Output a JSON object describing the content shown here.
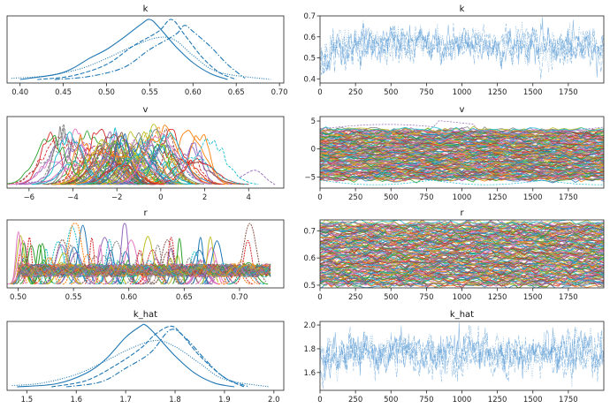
{
  "chart_data": [
    {
      "type": "line",
      "title": "k",
      "xlim": [
        0.385,
        0.705
      ],
      "x_ticks": [
        "0.40",
        "0.45",
        "0.50",
        "0.55",
        "0.60",
        "0.65",
        "0.70"
      ],
      "x_tick_values": [
        0.4,
        0.45,
        0.5,
        0.55,
        0.6,
        0.65,
        0.7
      ],
      "series": [
        {
          "style": "solid",
          "x": [
            0.4,
            0.44,
            0.46,
            0.48,
            0.5,
            0.52,
            0.54,
            0.55,
            0.56,
            0.58,
            0.6,
            0.62,
            0.64
          ],
          "y": [
            0.0,
            0.08,
            0.18,
            0.35,
            0.5,
            0.7,
            0.92,
            1.0,
            0.88,
            0.55,
            0.28,
            0.1,
            0.0
          ]
        },
        {
          "style": "dashed",
          "x": [
            0.42,
            0.46,
            0.5,
            0.53,
            0.56,
            0.575,
            0.59,
            0.61,
            0.63,
            0.65
          ],
          "y": [
            0.0,
            0.06,
            0.25,
            0.55,
            0.8,
            1.0,
            0.75,
            0.38,
            0.12,
            0.0
          ]
        },
        {
          "style": "dashdot",
          "x": [
            0.44,
            0.48,
            0.52,
            0.55,
            0.58,
            0.59,
            0.6,
            0.62,
            0.64,
            0.66
          ],
          "y": [
            0.0,
            0.05,
            0.2,
            0.5,
            0.75,
            0.9,
            0.8,
            0.55,
            0.25,
            0.02
          ]
        },
        {
          "style": "dotted",
          "x": [
            0.39,
            0.43,
            0.47,
            0.5,
            0.53,
            0.56,
            0.58,
            0.6,
            0.63,
            0.69
          ],
          "y": [
            0.02,
            0.06,
            0.18,
            0.35,
            0.55,
            0.7,
            0.65,
            0.4,
            0.12,
            0.0
          ]
        }
      ]
    },
    {
      "type": "line",
      "title": "k",
      "xlim": [
        0,
        2000
      ],
      "ylim": [
        0.38,
        0.7
      ],
      "x_ticks": [
        "0",
        "250",
        "500",
        "750",
        "1000",
        "1250",
        "1500",
        "1750"
      ],
      "x_tick_values": [
        0,
        250,
        500,
        750,
        1000,
        1250,
        1500,
        1750
      ],
      "y_ticks": [
        "0.4",
        "0.5",
        "0.6",
        "0.7"
      ],
      "y_tick_values": [
        0.4,
        0.5,
        0.6,
        0.7
      ],
      "series_summary": {
        "chains": 4,
        "draws": 2000,
        "start_mean": 0.48,
        "mean": 0.56,
        "sd": 0.035
      }
    },
    {
      "type": "line",
      "title": "v",
      "xlim": [
        -7,
        5.6
      ],
      "x_ticks": [
        "−6",
        "−4",
        "−2",
        "0",
        "2",
        "4"
      ],
      "x_tick_values": [
        -6,
        -4,
        -2,
        0,
        2,
        4
      ],
      "density_summary": {
        "center": -1.7,
        "min": -6.5,
        "max": 5.2,
        "many_overlaid_variables": true
      }
    },
    {
      "type": "line",
      "title": "v",
      "xlim": [
        0,
        2000
      ],
      "ylim": [
        -7,
        5.8
      ],
      "x_ticks": [
        "0",
        "250",
        "500",
        "750",
        "1000",
        "1250",
        "1500",
        "1750"
      ],
      "x_tick_values": [
        0,
        250,
        500,
        750,
        1000,
        1250,
        1500,
        1750
      ],
      "y_ticks": [
        "−5",
        "0",
        "5"
      ],
      "y_tick_values": [
        -5,
        0,
        5
      ],
      "series_summary": {
        "band_min": -5.5,
        "band_max": 3.5,
        "many_overlaid_variables": true
      }
    },
    {
      "type": "line",
      "title": "r",
      "xlim": [
        0.49,
        0.74
      ],
      "x_ticks": [
        "0.50",
        "0.55",
        "0.60",
        "0.65",
        "0.70"
      ],
      "x_tick_values": [
        0.5,
        0.55,
        0.6,
        0.65,
        0.7
      ],
      "density_summary": {
        "min": 0.5,
        "max": 0.73,
        "many_overlaid_variables": true
      }
    },
    {
      "type": "line",
      "title": "r",
      "xlim": [
        0,
        2000
      ],
      "ylim": [
        0.49,
        0.74
      ],
      "x_ticks": [
        "0",
        "250",
        "500",
        "750",
        "1000",
        "1250",
        "1500",
        "1750"
      ],
      "x_tick_values": [
        0,
        250,
        500,
        750,
        1000,
        1250,
        1500,
        1750
      ],
      "y_ticks": [
        "0.5",
        "0.6",
        "0.7"
      ],
      "y_tick_values": [
        0.5,
        0.6,
        0.7
      ],
      "series_summary": {
        "band_min": 0.5,
        "band_max": 0.73,
        "many_overlaid_variables": true
      }
    },
    {
      "type": "line",
      "title": "k_hat",
      "xlim": [
        1.46,
        2.02
      ],
      "x_ticks": [
        "1.5",
        "1.6",
        "1.7",
        "1.8",
        "1.9",
        "2.0"
      ],
      "x_tick_values": [
        1.5,
        1.6,
        1.7,
        1.8,
        1.9,
        2.0
      ],
      "series": [
        {
          "style": "solid",
          "x": [
            1.48,
            1.56,
            1.62,
            1.66,
            1.7,
            1.73,
            1.74,
            1.76,
            1.8,
            1.84,
            1.88,
            1.92
          ],
          "y": [
            0.0,
            0.05,
            0.22,
            0.45,
            0.8,
            0.98,
            1.0,
            0.85,
            0.5,
            0.22,
            0.06,
            0.0
          ]
        },
        {
          "style": "dashed",
          "x": [
            1.55,
            1.62,
            1.68,
            1.73,
            1.76,
            1.79,
            1.81,
            1.85,
            1.9,
            1.94
          ],
          "y": [
            0.0,
            0.1,
            0.35,
            0.62,
            0.85,
            0.98,
            0.88,
            0.5,
            0.15,
            0.0
          ]
        },
        {
          "style": "dashdot",
          "x": [
            1.58,
            1.65,
            1.7,
            1.75,
            1.79,
            1.82,
            1.86,
            1.9,
            1.95
          ],
          "y": [
            0.0,
            0.08,
            0.3,
            0.55,
            0.92,
            0.8,
            0.45,
            0.15,
            0.0
          ]
        },
        {
          "style": "dotted",
          "x": [
            1.47,
            1.53,
            1.6,
            1.66,
            1.71,
            1.76,
            1.8,
            1.85,
            1.9,
            1.99
          ],
          "y": [
            0.02,
            0.06,
            0.2,
            0.42,
            0.62,
            0.75,
            0.65,
            0.38,
            0.12,
            0.0
          ]
        }
      ]
    },
    {
      "type": "line",
      "title": "k_hat",
      "xlim": [
        0,
        2000
      ],
      "ylim": [
        1.45,
        2.03
      ],
      "x_ticks": [
        "0",
        "250",
        "500",
        "750",
        "1000",
        "1250",
        "1500",
        "1750"
      ],
      "x_tick_values": [
        0,
        250,
        500,
        750,
        1000,
        1250,
        1500,
        1750
      ],
      "y_ticks": [
        "1.6",
        "1.8",
        "2.0"
      ],
      "y_tick_values": [
        1.6,
        1.8,
        2.0
      ],
      "series_summary": {
        "chains": 4,
        "draws": 2000,
        "start_mean": 1.65,
        "mean": 1.76,
        "sd": 0.07
      }
    }
  ],
  "colors": {
    "trace_blue": "#5a9bd4",
    "density_blue": "#1f77b4",
    "palette": [
      "#1f77b4",
      "#ff7f0e",
      "#2ca02c",
      "#d62728",
      "#9467bd",
      "#8c564b",
      "#e377c2",
      "#7f7f7f",
      "#bcbd22",
      "#17becf"
    ]
  }
}
